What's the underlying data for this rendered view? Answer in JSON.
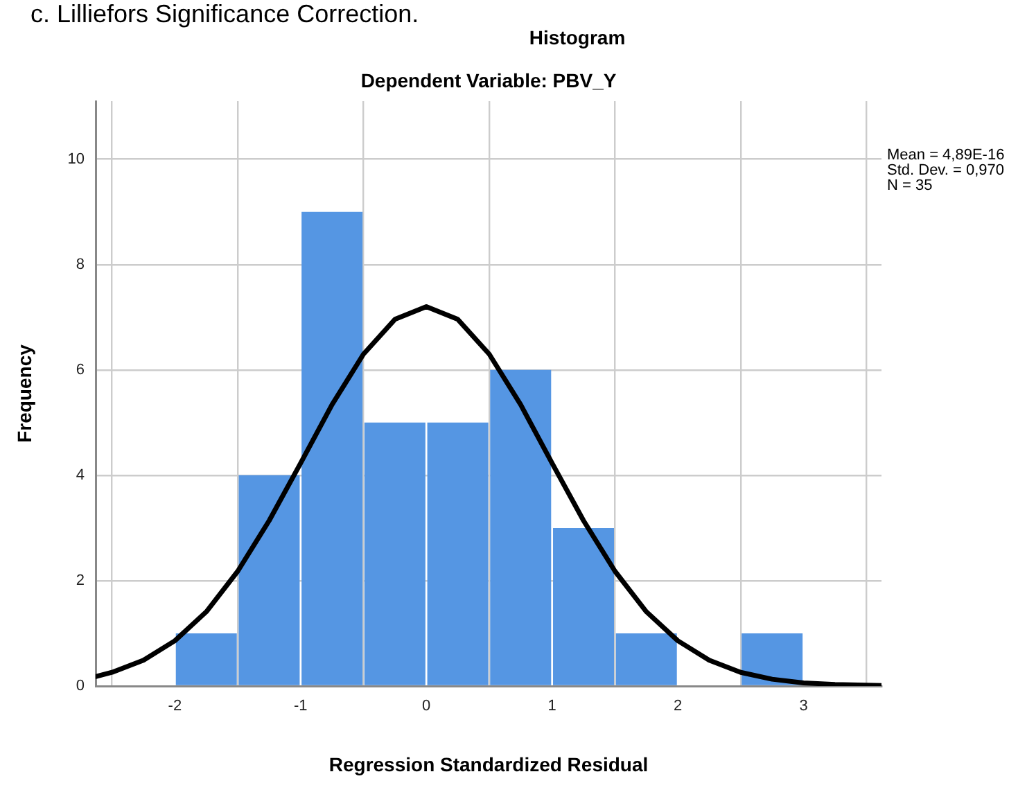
{
  "chart_data": {
    "type": "histogram",
    "title": "Histogram",
    "subtitle": "Dependent Variable: PBV_Y",
    "xlabel": "Regression Standardized Residual",
    "ylabel": "Frequency",
    "annotations": [
      "c. Lilliefors Significance Correction.",
      "Mean = 4,89E-16",
      "Std. Dev. = 0,970",
      "N = 35"
    ],
    "bins": [
      -2,
      -1.5,
      -1,
      -0.5,
      0,
      0.5,
      1,
      1.5,
      2,
      2.5,
      3
    ],
    "values": [
      1,
      4,
      9,
      5,
      5,
      6,
      3,
      1,
      0,
      1
    ],
    "color": "#5596e3",
    "series": [
      {
        "type": "line",
        "color": "#000000",
        "x": [
          -2.63,
          -2.5,
          -2.25,
          -2,
          -1.75,
          -1.5,
          -1.25,
          -1,
          -0.75,
          -0.5,
          -0.25,
          0,
          0.25,
          0.5,
          0.75,
          1,
          1.25,
          1.5,
          1.75,
          2,
          2.25,
          2.5,
          2.75,
          3,
          3.25,
          3.62
        ],
        "values": [
          0.18,
          0.26,
          0.49,
          0.86,
          1.41,
          2.18,
          3.14,
          4.23,
          5.34,
          6.3,
          6.96,
          7.2,
          6.96,
          6.3,
          5.34,
          4.23,
          3.14,
          2.18,
          1.41,
          0.86,
          0.49,
          0.26,
          0.13,
          0.06,
          0.03,
          0.01
        ]
      }
    ],
    "xlim": [
      -2.63,
      3.62
    ],
    "ylim": [
      0,
      11.1
    ],
    "xticks": [
      -2,
      -1,
      0,
      1,
      2,
      3
    ],
    "yticks": [
      0,
      2,
      4,
      6,
      8,
      10
    ],
    "grid": true,
    "legend": false,
    "marker": "none",
    "line_style": "solid"
  }
}
